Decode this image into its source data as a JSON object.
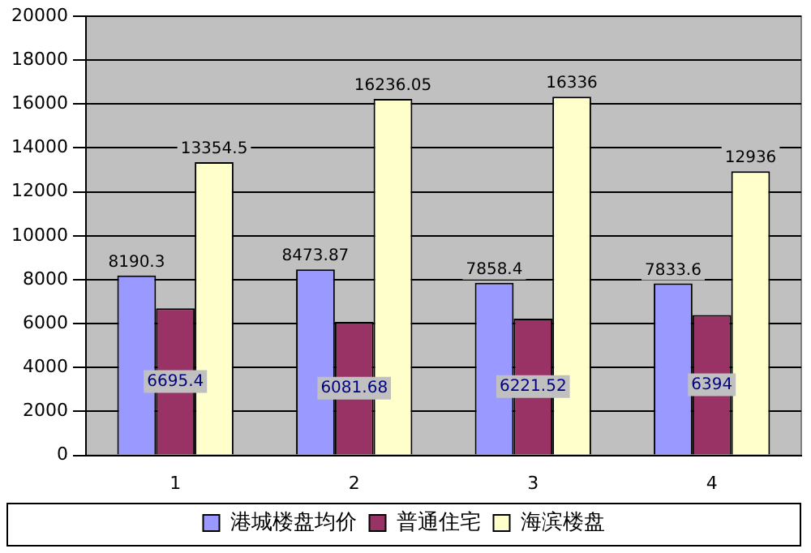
{
  "chart_data": {
    "type": "bar",
    "categories": [
      "1",
      "2",
      "3",
      "4"
    ],
    "series": [
      {
        "name": "港城楼盘均价",
        "color": "#9999ff",
        "values": [
          8190.3,
          8473.87,
          7858.4,
          7833.6
        ]
      },
      {
        "name": "普通住宅",
        "color": "#993366",
        "values": [
          6695.4,
          6081.68,
          6221.52,
          6394
        ]
      },
      {
        "name": "海滨楼盘",
        "color": "#ffffcc",
        "values": [
          13354.5,
          16236.05,
          16336,
          12936
        ]
      }
    ],
    "ylim": [
      0,
      20000
    ],
    "yticks": [
      0,
      2000,
      4000,
      6000,
      8000,
      10000,
      12000,
      14000,
      16000,
      18000,
      20000
    ],
    "grid": "y",
    "legend": "bottom",
    "data_labels": true
  }
}
